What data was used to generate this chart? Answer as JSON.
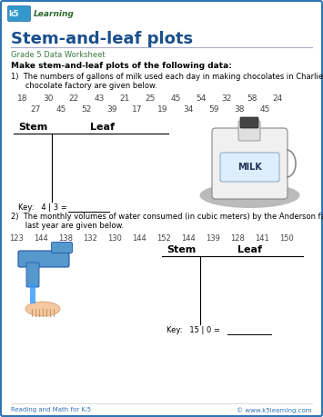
{
  "title": "Stem-and-leaf plots",
  "subtitle": "Grade 5 Data Worksheet",
  "instruction": "Make stem-and-leaf plots of the following data:",
  "q1_label_1": "1)  The numbers of gallons of milk used each day in making chocolates in Charlie’s",
  "q1_label_2": "      chocolate factory are given below.",
  "q1_data_row1": [
    "18",
    "30",
    "22",
    "43",
    "21",
    "25",
    "45",
    "54",
    "32",
    "58",
    "24"
  ],
  "q1_data_row2": [
    "27",
    "45",
    "52",
    "39",
    "17",
    "19",
    "34",
    "59",
    "38",
    "45"
  ],
  "q1_stem_label": "Stem",
  "q1_leaf_label": "Leaf",
  "q1_key": "Key:   4 | 3 = ",
  "q2_label_1": "2)  The monthly volumes of water consumed (in cubic meters) by the Anderson family",
  "q2_label_2": "      last year are given below.",
  "q2_data_row1": [
    "123",
    "144",
    "138",
    "132",
    "130",
    "144",
    "152",
    "144",
    "139",
    "128",
    "141",
    "150"
  ],
  "q2_stem_label": "Stem",
  "q2_leaf_label": "Leaf",
  "q2_key": "Key:   15 | 0 = ",
  "footer_left": "Reading and Math for K-5",
  "footer_right": "© www.k5learning.com",
  "title_color": "#1a4f8c",
  "subtitle_color": "#3a7d44",
  "border_color": "#2e75b6",
  "line_color": "#000000",
  "bg_color": "#ffffff",
  "text_color": "#000000",
  "data_color": "#444444",
  "footer_color": "#2e75b6",
  "logo_bg": "#2e75b6",
  "logo_text": "#ffffff"
}
